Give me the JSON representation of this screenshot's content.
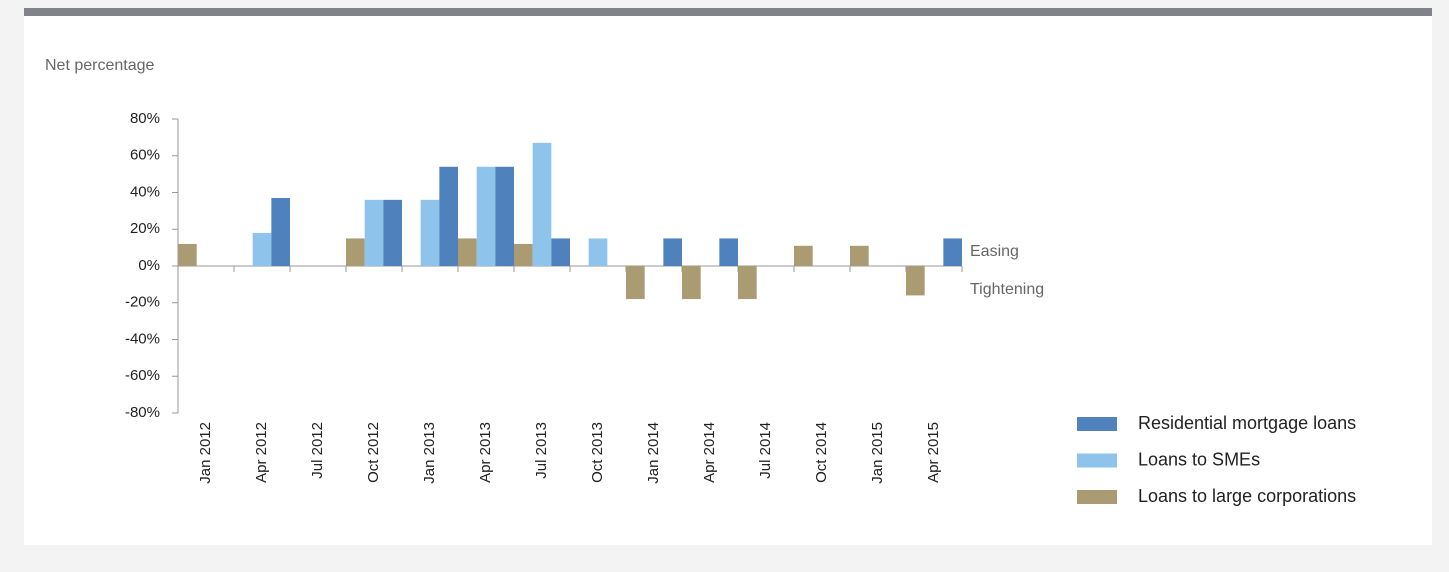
{
  "chart_data": {
    "type": "bar",
    "y_axis_label": "Net percentage",
    "annotations": [
      "Easing",
      "Tightening"
    ],
    "categories": [
      "Jan 2012",
      "Apr 2012",
      "Jul 2012",
      "Oct 2012",
      "Jan 2013",
      "Apr 2013",
      "Jul 2013",
      "Oct 2013",
      "Jan 2014",
      "Apr 2014",
      "Jul 2014",
      "Oct 2014",
      "Jan 2015",
      "Apr 2015"
    ],
    "series": [
      {
        "name": "Loans to large corporations",
        "color": "#ab9b73",
        "values": [
          12,
          null,
          null,
          15,
          null,
          15,
          12,
          null,
          -18,
          -18,
          -18,
          11,
          11,
          -16
        ]
      },
      {
        "name": "Loans to SMEs",
        "color": "#8ec4ec",
        "values": [
          null,
          18,
          null,
          36,
          36,
          54,
          67,
          15,
          null,
          null,
          null,
          null,
          null,
          null
        ]
      },
      {
        "name": "Residential mortgage loans",
        "color": "#4f81bd",
        "values": [
          null,
          37,
          null,
          36,
          54,
          54,
          15,
          null,
          15,
          15,
          null,
          null,
          null,
          15
        ]
      }
    ],
    "legend_order": [
      2,
      1,
      0
    ],
    "ylim": [
      -80,
      80
    ],
    "yticks": [
      {
        "value": 80,
        "label": "80%"
      },
      {
        "value": 60,
        "label": "60%"
      },
      {
        "value": 40,
        "label": "40%"
      },
      {
        "value": 20,
        "label": "20%"
      },
      {
        "value": 0,
        "label": "0%"
      },
      {
        "value": -20,
        "label": "-20%"
      },
      {
        "value": -40,
        "label": "-40%"
      },
      {
        "value": -60,
        "label": "-60%"
      },
      {
        "value": -80,
        "label": "-80%"
      }
    ],
    "grid": false
  }
}
